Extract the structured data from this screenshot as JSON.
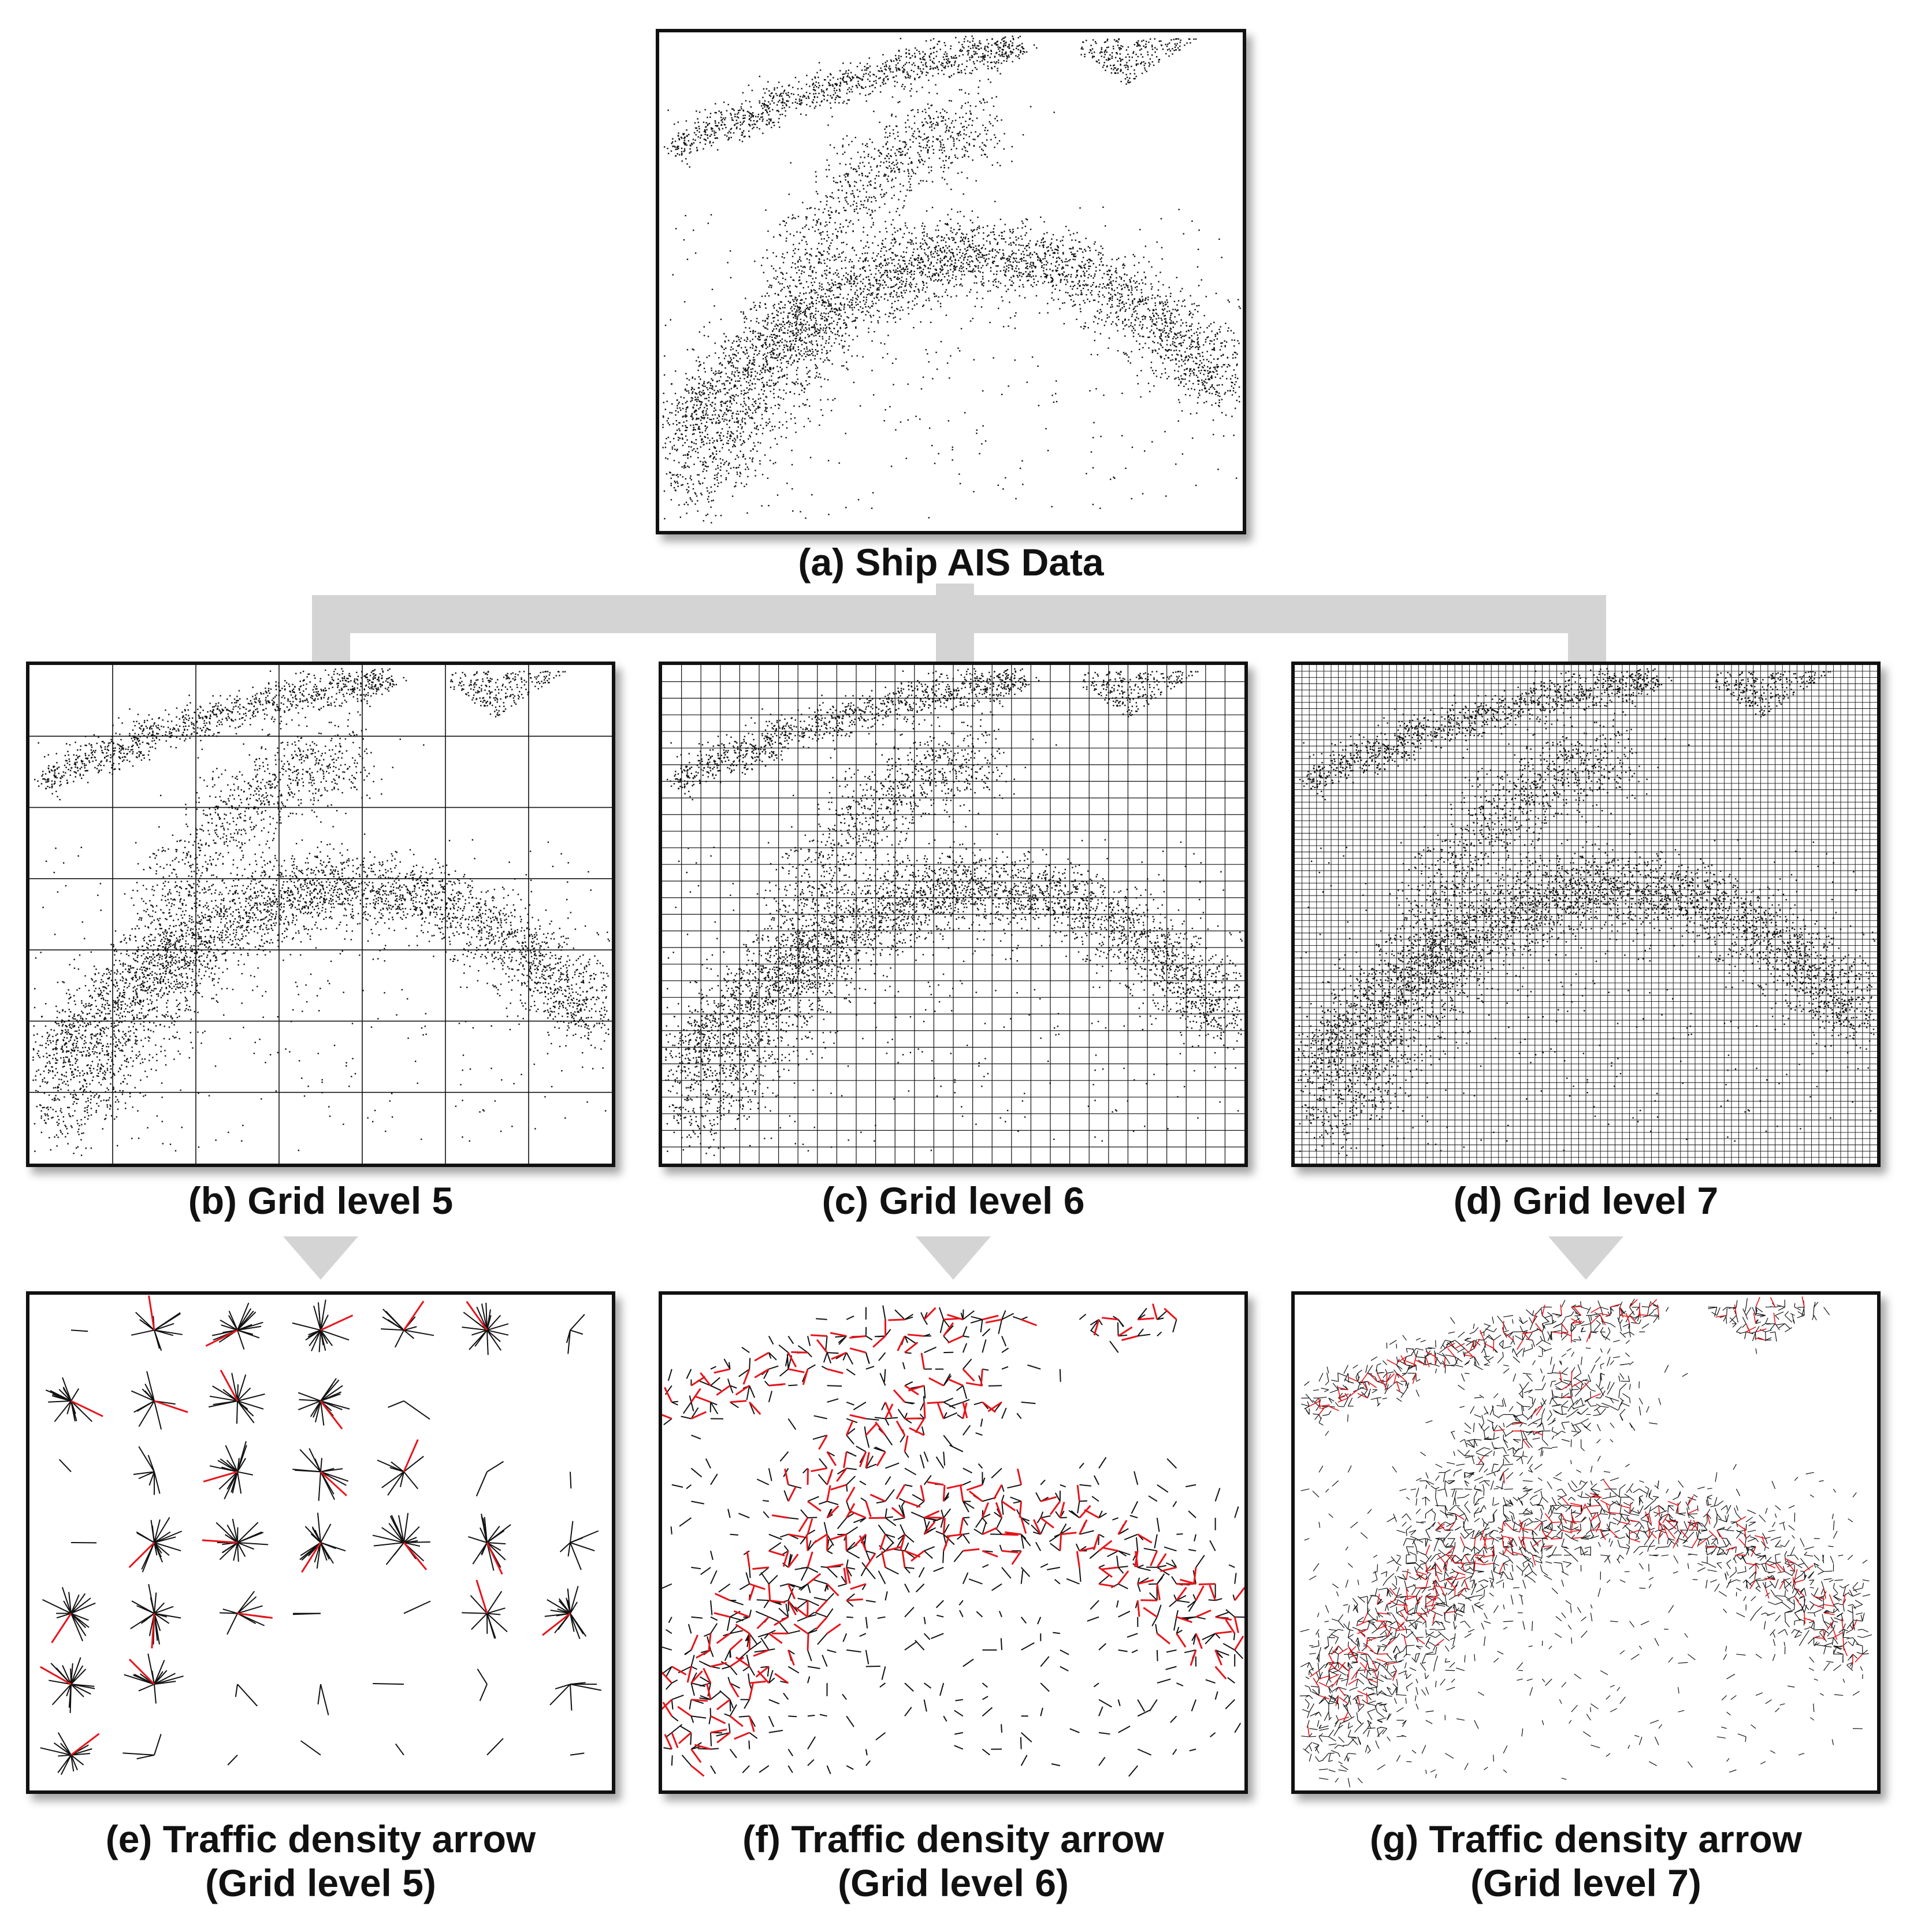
{
  "figure": {
    "panels": [
      {
        "id": "a",
        "caption": "(a) Ship AIS Data"
      },
      {
        "id": "b",
        "caption": "(b) Grid level 5",
        "grid_level": 5,
        "grid_divisions": 7
      },
      {
        "id": "c",
        "caption": "(c) Grid level 6",
        "grid_level": 6,
        "grid_divisions": 30
      },
      {
        "id": "d",
        "caption": "(d) Grid level 7",
        "grid_level": 7,
        "grid_divisions": 80
      },
      {
        "id": "e",
        "caption_line1": "(e) Traffic density arrow",
        "caption_line2": "(Grid level 5)"
      },
      {
        "id": "f",
        "caption_line1": "(f) Traffic density arrow",
        "caption_line2": "(Grid level 6)"
      },
      {
        "id": "g",
        "caption_line1": "(g) Traffic density arrow",
        "caption_line2": "(Grid level 7)"
      }
    ]
  },
  "colors": {
    "points": "#111111",
    "arrow_red": "#e8141b",
    "arrow_black": "#111111",
    "connector": "#d4d4d4"
  }
}
